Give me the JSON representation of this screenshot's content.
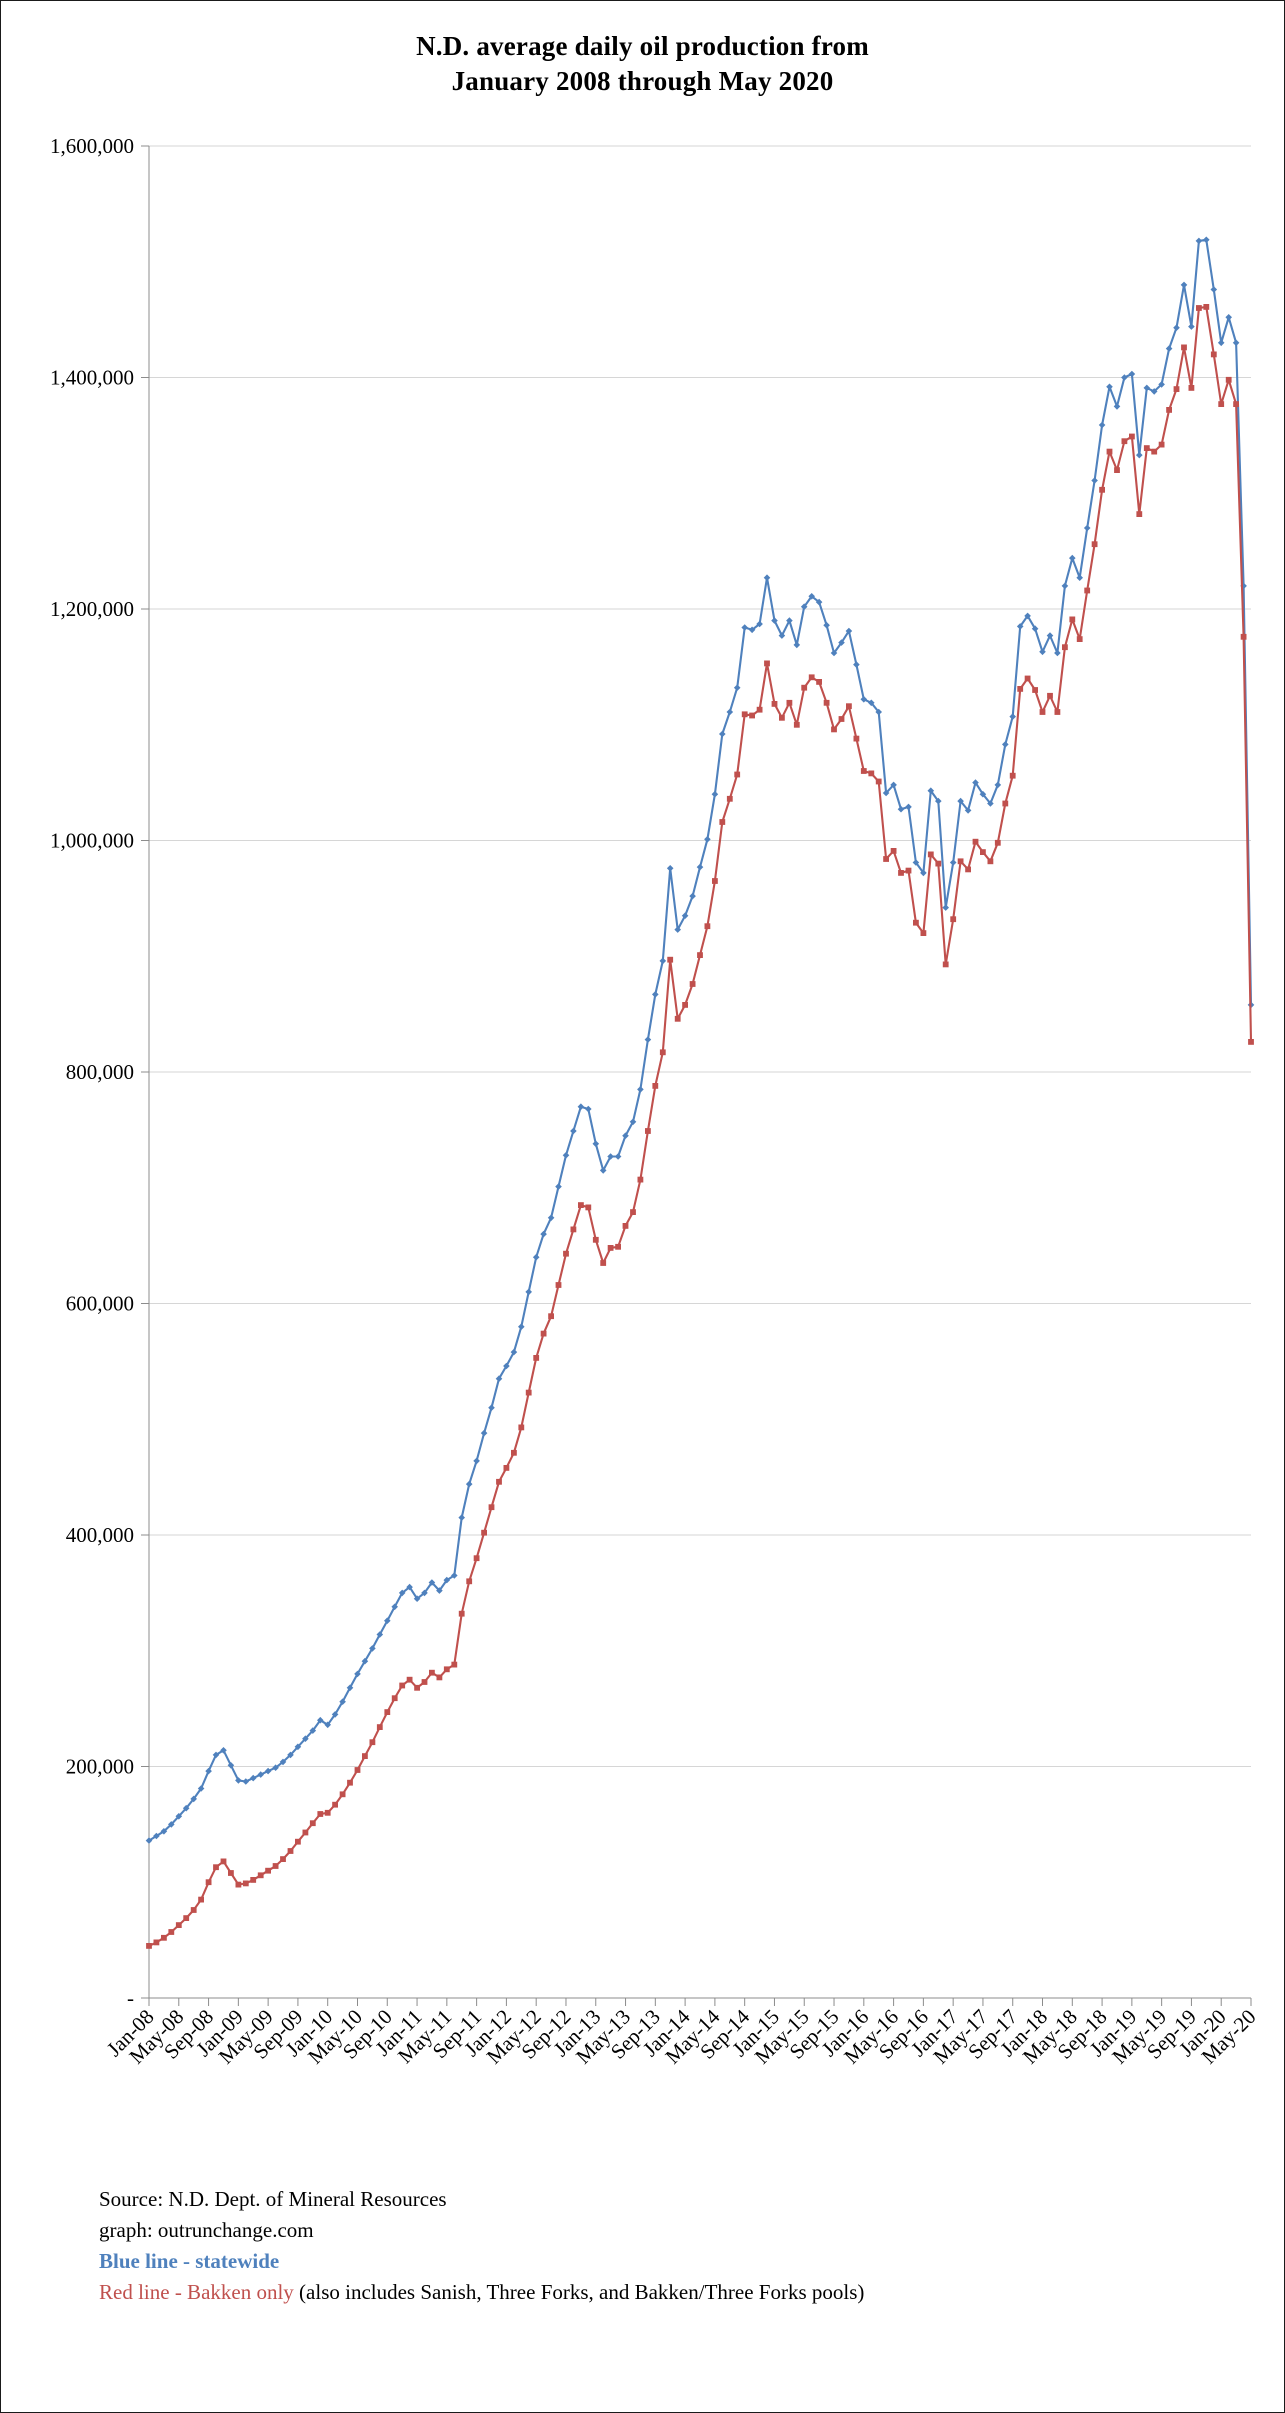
{
  "title": {
    "line1": "N.D. average daily oil production from",
    "line2": "January 2008 through May 2020"
  },
  "footer": {
    "source": "Source: N.D. Dept. of Mineral Resources",
    "graph_credit": "graph: outrunchange.com",
    "blue_legend": "Blue line - statewide",
    "red_legend": "Red line - Bakken only",
    "red_legend_suffix": " (also includes Sanish, Three Forks, and Bakken/Three Forks pools)"
  },
  "colors": {
    "statewide": "#4F81BD",
    "bakken": "#C0504D",
    "gridline": "#D6D6D6",
    "axis": "#8C8C8C",
    "text": "#000000",
    "page_border": "#1a1a1a"
  },
  "chart_data": {
    "type": "line",
    "title": "N.D. average daily oil production from January 2008 through May 2020",
    "x_unit": "month",
    "x_start": "Jan-08",
    "x_end": "May-20",
    "x_step_months": 1,
    "n_points": 149,
    "grid": true,
    "legend_position": "none",
    "x_label_interval": 4,
    "x_labels": [
      "Jan-08",
      "May-08",
      "Sep-08",
      "Jan-09",
      "May-09",
      "Sep-09",
      "Jan-10",
      "May-10",
      "Sep-10",
      "Jan-11",
      "May-11",
      "Sep-11",
      "Jan-12",
      "May-12",
      "Sep-12",
      "Jan-13",
      "May-13",
      "Sep-13",
      "Jan-14",
      "May-14",
      "Sep-14",
      "Jan-15",
      "May-15",
      "Sep-15",
      "Jan-16",
      "May-16",
      "Sep-16",
      "Jan-17",
      "May-17",
      "Sep-17",
      "Jan-18",
      "May-18",
      "Sep-18",
      "Jan-19",
      "May-19",
      "Sep-19",
      "Jan-20",
      "May-20"
    ],
    "y_axis": {
      "min": 0,
      "max": 1600000,
      "step": 200000,
      "labels": [
        "-",
        "200,000",
        "400,000",
        "600,000",
        "800,000",
        "1,000,000",
        "1,200,000",
        "1,400,000",
        "1,600,000"
      ]
    },
    "series": [
      {
        "name": "statewide",
        "color": "#4F81BD",
        "marker": "diamond",
        "values": [
          136000,
          140000,
          144000,
          150000,
          157000,
          164000,
          172000,
          181000,
          196000,
          210000,
          214000,
          201000,
          188000,
          187000,
          190000,
          193000,
          196000,
          199000,
          204000,
          210000,
          217000,
          224000,
          231000,
          240000,
          236000,
          245000,
          256000,
          268000,
          280000,
          291000,
          302000,
          314000,
          326000,
          338000,
          350000,
          355000,
          345000,
          350000,
          359000,
          352000,
          361000,
          365000,
          415000,
          444000,
          464000,
          488000,
          510000,
          535000,
          546000,
          558000,
          580000,
          610000,
          640000,
          660000,
          674000,
          701000,
          728000,
          749000,
          770000,
          768000,
          738000,
          715000,
          727000,
          727000,
          745000,
          757000,
          785000,
          828000,
          867000,
          896000,
          976000,
          923000,
          935000,
          952000,
          977000,
          1001000,
          1040000,
          1092000,
          1111000,
          1132000,
          1184000,
          1182000,
          1187000,
          1227000,
          1190000,
          1177000,
          1190000,
          1169000,
          1202000,
          1211000,
          1206000,
          1186000,
          1162000,
          1171000,
          1181000,
          1152000,
          1122000,
          1119000,
          1111000,
          1041000,
          1048000,
          1027000,
          1029000,
          981000,
          972000,
          1043000,
          1034000,
          942000,
          981000,
          1034000,
          1026000,
          1050000,
          1040000,
          1032000,
          1048000,
          1083000,
          1107000,
          1185000,
          1194000,
          1183000,
          1163000,
          1177000,
          1162000,
          1220000,
          1244000,
          1227000,
          1270000,
          1311000,
          1359000,
          1392000,
          1375000,
          1400000,
          1403000,
          1333000,
          1391000,
          1388000,
          1394000,
          1425000,
          1443000,
          1480000,
          1444000,
          1518000,
          1519000,
          1476000,
          1430000,
          1452000,
          1430000,
          1220000,
          858000
        ]
      },
      {
        "name": "Bakken only",
        "color": "#C0504D",
        "marker": "square",
        "values": [
          45000,
          48000,
          52000,
          57000,
          63000,
          69000,
          76000,
          85000,
          100000,
          113000,
          118000,
          108000,
          98000,
          99000,
          102000,
          106000,
          110000,
          114000,
          120000,
          127000,
          135000,
          143000,
          151000,
          159000,
          160000,
          167000,
          176000,
          186000,
          197000,
          209000,
          221000,
          234000,
          247000,
          259000,
          270000,
          275000,
          268000,
          273000,
          281000,
          277000,
          284000,
          288000,
          332000,
          360000,
          380000,
          402000,
          424000,
          446000,
          458000,
          471000,
          493000,
          523000,
          553000,
          574000,
          589000,
          616000,
          643000,
          664000,
          685000,
          683000,
          655000,
          635000,
          648000,
          649000,
          667000,
          679000,
          707000,
          749000,
          788000,
          817000,
          897000,
          846000,
          858000,
          876000,
          901000,
          926000,
          965000,
          1016000,
          1036000,
          1057000,
          1109000,
          1108000,
          1113000,
          1153000,
          1118000,
          1106000,
          1119000,
          1100000,
          1132000,
          1141000,
          1137000,
          1119000,
          1096000,
          1105000,
          1116000,
          1088000,
          1060000,
          1058000,
          1051000,
          984000,
          991000,
          972000,
          974000,
          929000,
          920000,
          988000,
          980000,
          893000,
          932000,
          982000,
          975000,
          999000,
          990000,
          982000,
          998000,
          1032000,
          1056000,
          1131000,
          1140000,
          1130000,
          1111000,
          1125000,
          1111000,
          1167000,
          1191000,
          1174000,
          1216000,
          1256000,
          1303000,
          1336000,
          1320000,
          1345000,
          1349000,
          1282000,
          1339000,
          1336000,
          1342000,
          1372000,
          1390000,
          1426000,
          1391000,
          1460000,
          1461000,
          1420000,
          1377000,
          1398000,
          1377000,
          1176000,
          826000
        ]
      }
    ]
  }
}
